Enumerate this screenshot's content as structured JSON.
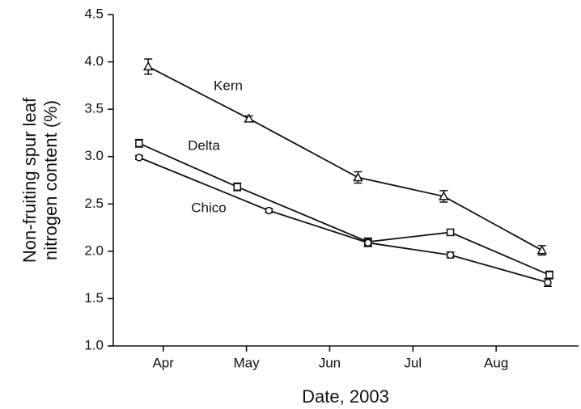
{
  "chart_data": {
    "type": "line",
    "xlabel": "Date, 2003",
    "ylabel": [
      "Non-fruiting spur leaf",
      "nitrogen content (%)"
    ],
    "xlim": [
      3.9,
      9.49
    ],
    "xticks": [
      {
        "value": 4.5,
        "label": "Apr"
      },
      {
        "value": 5.5,
        "label": "May"
      },
      {
        "value": 6.5,
        "label": "Jun"
      },
      {
        "value": 7.5,
        "label": "Jul"
      },
      {
        "value": 8.5,
        "label": "Aug"
      }
    ],
    "ylim": [
      1.0,
      4.5
    ],
    "yticks": [
      {
        "value": 1.0,
        "label": "1.0"
      },
      1.5,
      {
        "value": 2.0,
        "label": "2.0"
      },
      2.5,
      {
        "value": 3.0,
        "label": "3.0"
      },
      3.5,
      {
        "value": 4.0,
        "label": "4.0"
      },
      4.5
    ],
    "series": [
      {
        "name": "Kern",
        "color": "#111111",
        "marker": "triangle",
        "x": [
          4.32,
          5.53,
          6.84,
          7.87,
          9.05
        ],
        "values": [
          3.95,
          3.4,
          2.78,
          2.58,
          2.01
        ],
        "errors": [
          0.08,
          0.03,
          0.06,
          0.06,
          0.05
        ]
      },
      {
        "name": "Delta",
        "color": "#111111",
        "marker": "square",
        "x": [
          4.21,
          5.39,
          6.96,
          7.95,
          9.14
        ],
        "values": [
          3.14,
          2.68,
          2.1,
          2.2,
          1.75
        ],
        "errors": [
          0.04,
          0.04,
          0.04,
          0.03,
          0.04
        ]
      },
      {
        "name": "Chico",
        "color": "#111111",
        "marker": "circle",
        "x": [
          4.21,
          5.77,
          6.96,
          7.95,
          9.12
        ],
        "values": [
          2.99,
          2.43,
          2.09,
          1.96,
          1.67
        ],
        "errors": [
          0.02,
          0.02,
          0.04,
          0.03,
          0.04
        ]
      }
    ]
  }
}
